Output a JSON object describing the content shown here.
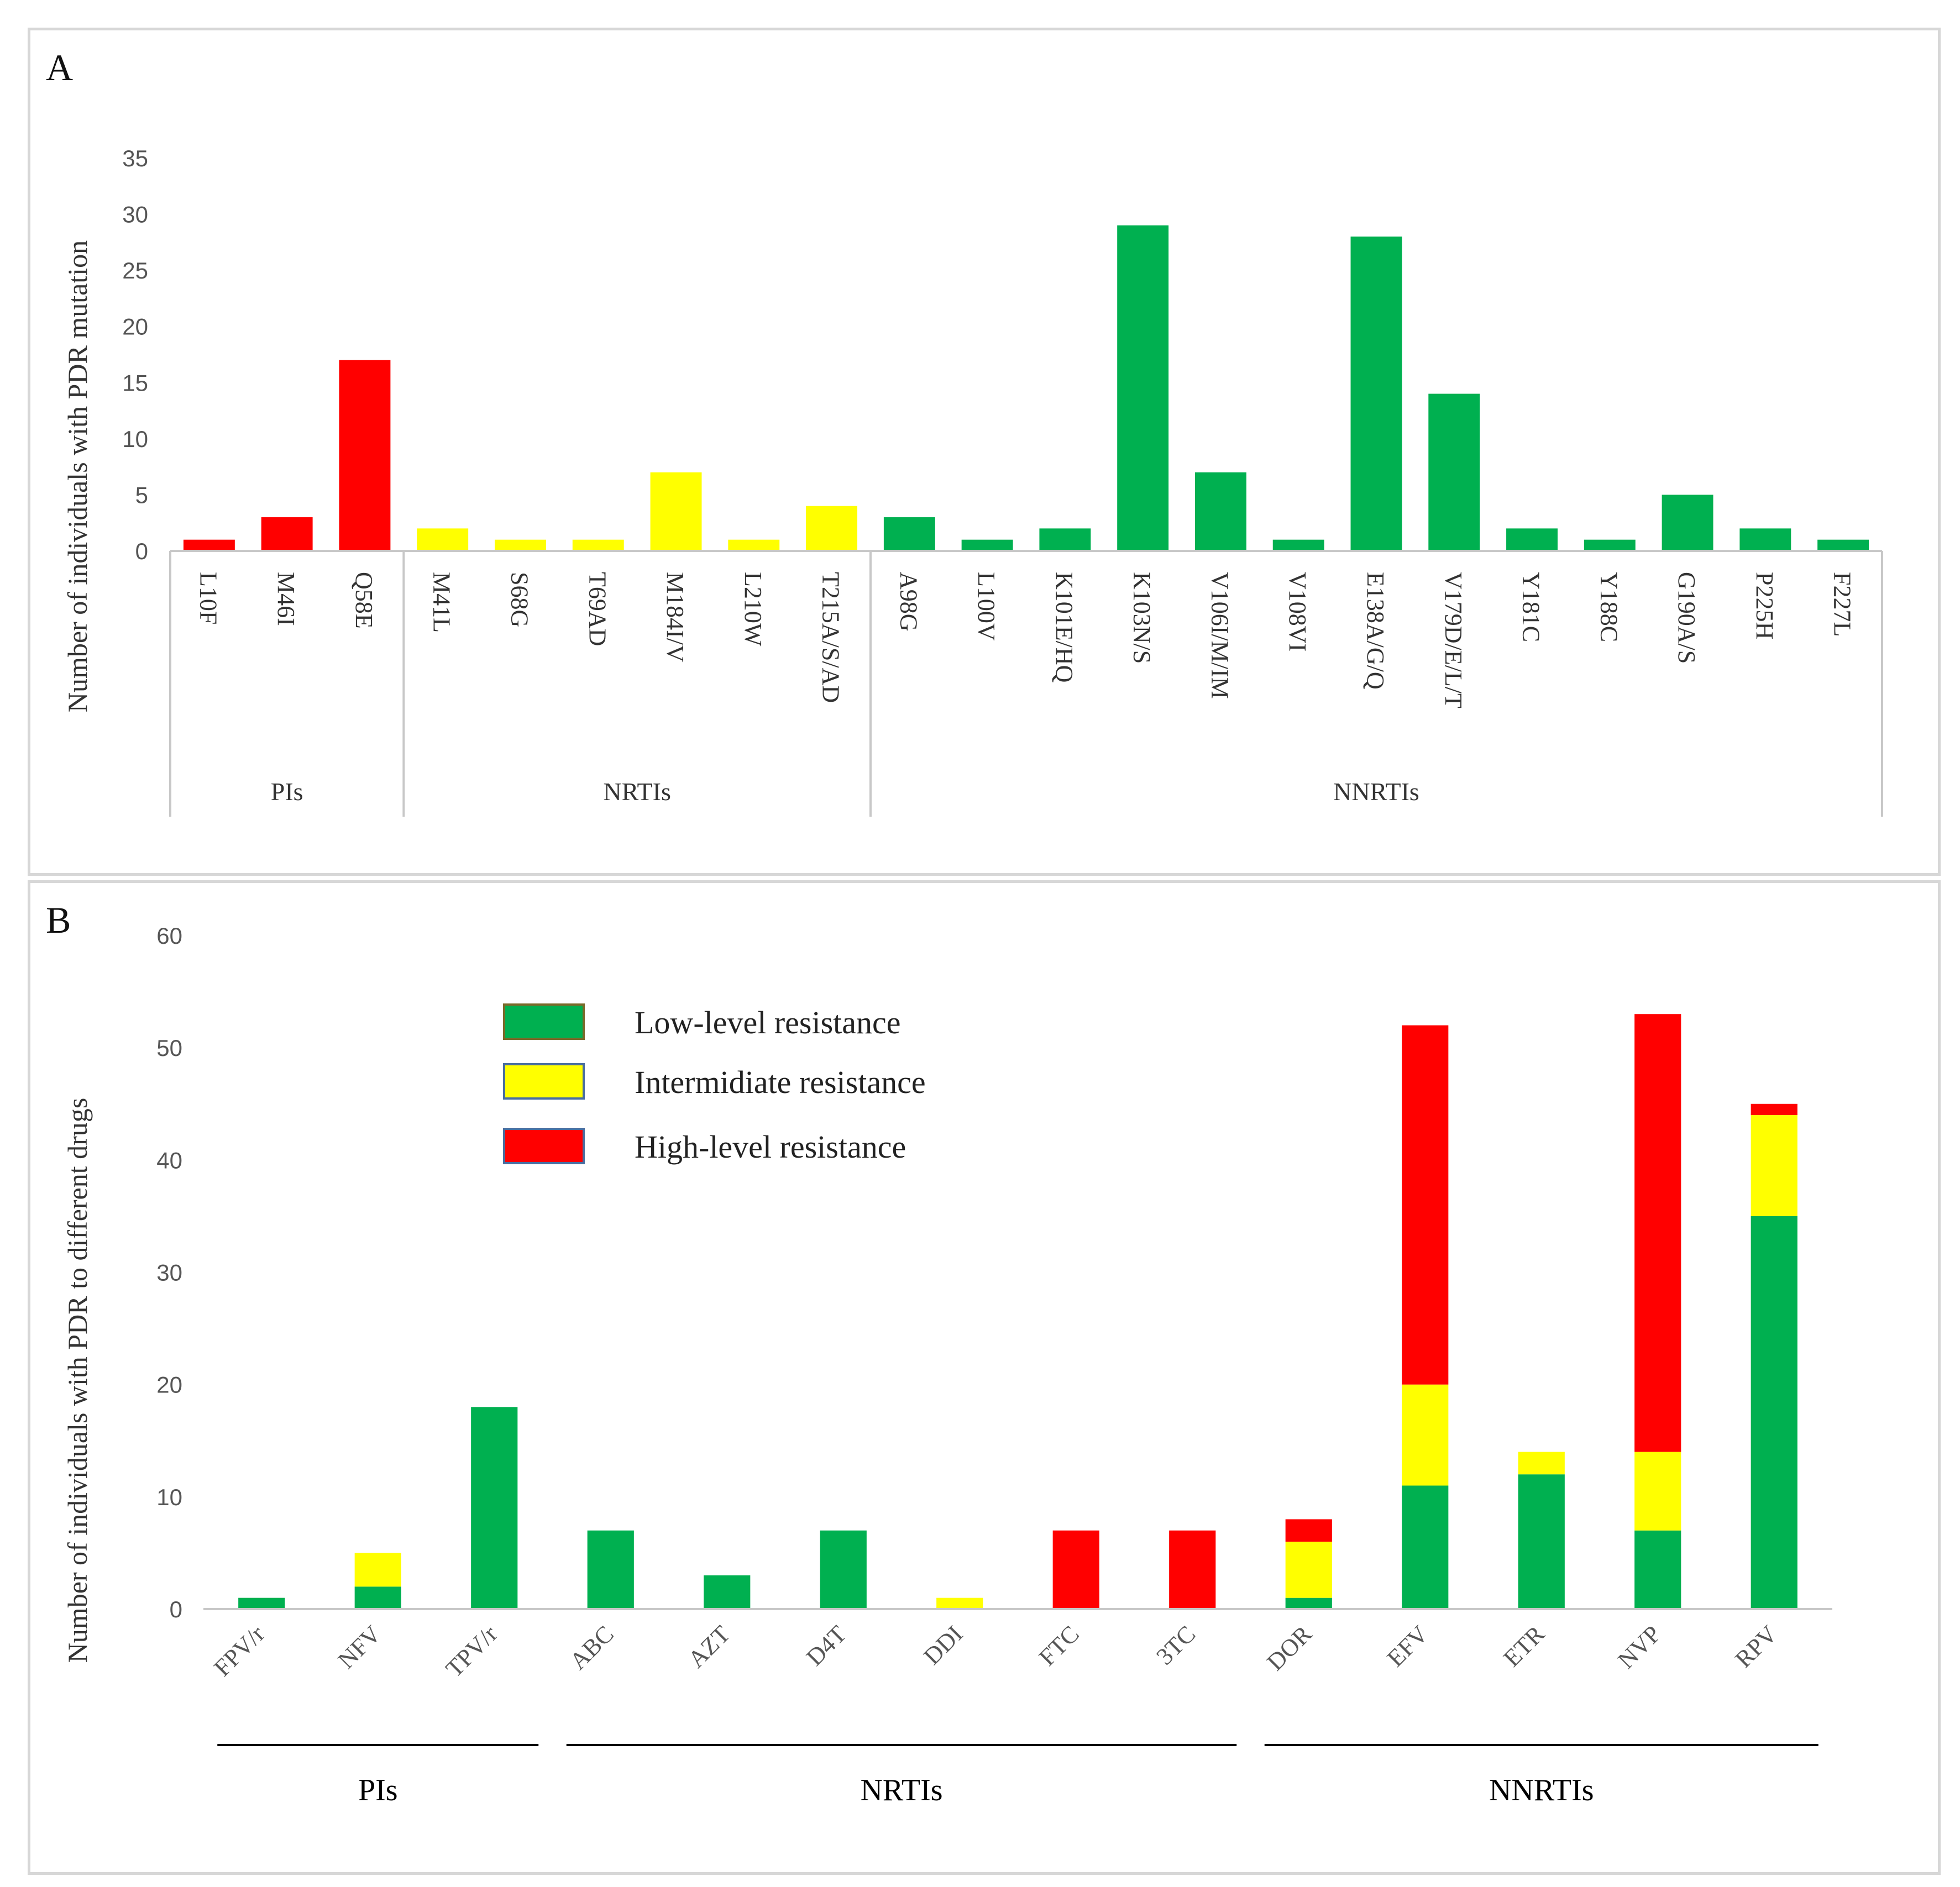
{
  "chart_data": [
    {
      "panel": "A",
      "type": "bar",
      "ylabel": "Number of individuals  with  PDR mutation",
      "ylim": [
        0,
        35
      ],
      "yticks": [
        0,
        5,
        10,
        15,
        20,
        25,
        30,
        35
      ],
      "grid": false,
      "groups": [
        {
          "name": "PIs",
          "categories": [
            "L10F",
            "M46I",
            "Q58E"
          ],
          "values": [
            1,
            3,
            17
          ],
          "color": "#FF0000"
        },
        {
          "name": "NRTIs",
          "categories": [
            "M41L",
            "S68G",
            "T69AD",
            "M184I/V",
            "L210W",
            "T215A/S/AD"
          ],
          "values": [
            2,
            1,
            1,
            7,
            1,
            4
          ],
          "color": "#FFFF00"
        },
        {
          "name": "NNRTIs",
          "categories": [
            "A98G",
            "L100V",
            "K101E/HQ",
            "K103N/S",
            "V106I/M/IM",
            "V108VI",
            "E138A/G/Q",
            "V179D/E/L/T",
            "Y181C",
            "Y188C",
            "G190A/S",
            "P225H",
            "F227L"
          ],
          "values": [
            3,
            1,
            2,
            29,
            7,
            1,
            28,
            14,
            2,
            1,
            5,
            2,
            1
          ],
          "color": "#00B050"
        }
      ]
    },
    {
      "panel": "B",
      "type": "bar",
      "stacked": true,
      "ylabel": "Number of individuals with  PDR to different drugs",
      "ylim": [
        0,
        60
      ],
      "yticks": [
        0,
        10,
        20,
        30,
        40,
        50,
        60
      ],
      "grid": false,
      "legend_position": "top-left",
      "categories": [
        "FPV/r",
        "NFV",
        "TPV/r",
        "ABC",
        "AZT",
        "D4T",
        "DDI",
        "FTC",
        "3TC",
        "DOR",
        "EFV",
        "ETR",
        "NVP",
        "RPV"
      ],
      "series": [
        {
          "name": "Low-level resistance",
          "color": "#00B050",
          "values": [
            1,
            2,
            18,
            7,
            3,
            7,
            0,
            0,
            0,
            1,
            11,
            12,
            7,
            35
          ]
        },
        {
          "name": "Intermidiate resistance",
          "color": "#FFFF00",
          "values": [
            0,
            3,
            0,
            0,
            0,
            0,
            1,
            0,
            0,
            5,
            9,
            2,
            7,
            9
          ]
        },
        {
          "name": "High-level resistance",
          "color": "#FF0000",
          "values": [
            0,
            0,
            0,
            0,
            0,
            0,
            0,
            7,
            7,
            2,
            32,
            0,
            39,
            1
          ]
        }
      ],
      "groups": [
        {
          "name": "PIs",
          "count": 3
        },
        {
          "name": "NRTIs",
          "count": 6
        },
        {
          "name": "NNRTIs",
          "count": 5
        }
      ]
    }
  ]
}
